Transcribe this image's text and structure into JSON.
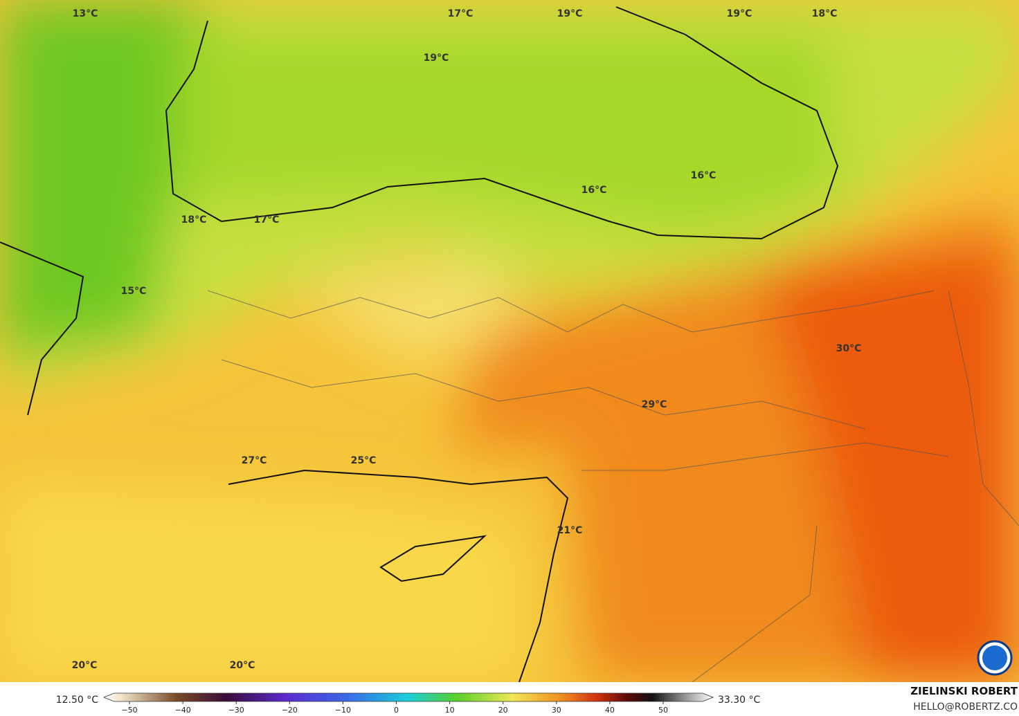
{
  "map": {
    "labels": [
      "13°C",
      "17°C",
      "19°C",
      "19°C",
      "18°C",
      "19°C",
      "16°C",
      "16°C",
      "18°C",
      "17°C",
      "15°C",
      "30°C",
      "29°C",
      "27°C",
      "25°C",
      "21°C",
      "20°C",
      "20°C"
    ],
    "legend": {
      "min_label": "12.50 °C",
      "max_label": "33.30 °C",
      "ticks": [
        {
          "value": -50,
          "label": "−50"
        },
        {
          "value": -40,
          "label": "−40"
        },
        {
          "value": -30,
          "label": "−30"
        },
        {
          "value": -20,
          "label": "−20"
        },
        {
          "value": -10,
          "label": "−10"
        },
        0,
        10,
        20,
        30,
        40,
        50
      ]
    },
    "credit": {
      "author": "ZIELINSKI ROBERT",
      "email": "HELLO@ROBERTZ.CO"
    }
  }
}
